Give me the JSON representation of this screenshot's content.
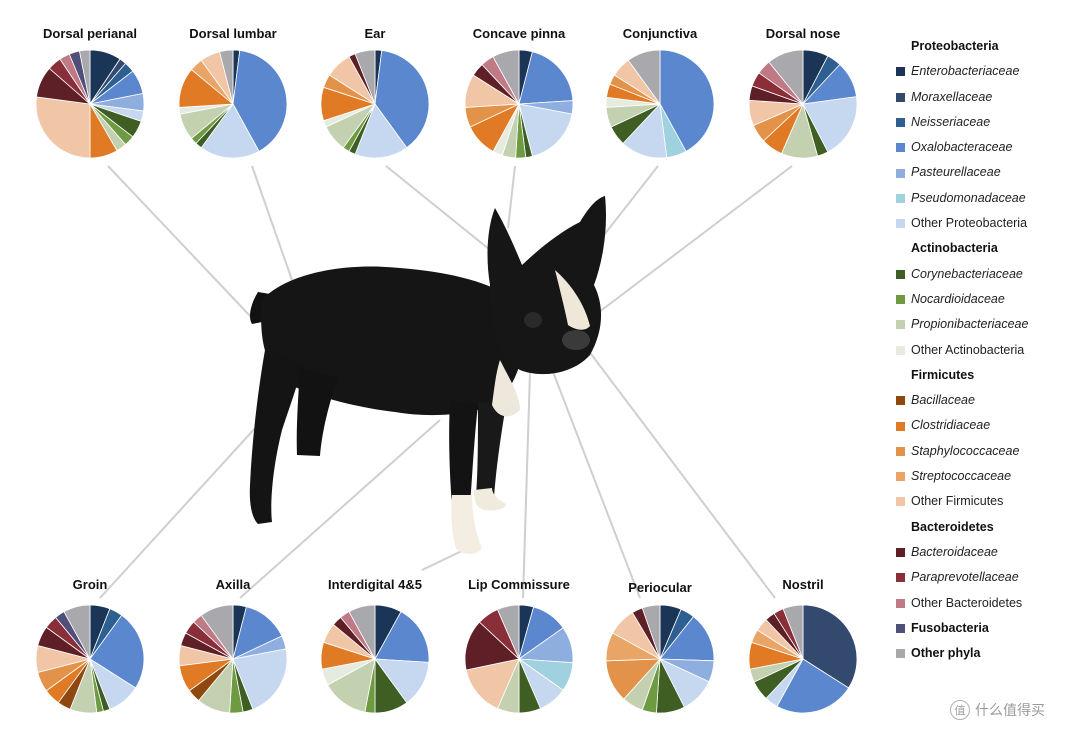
{
  "colors": {
    "Enterobacteriaceae": "#1b3557",
    "Moraxellaceae": "#34496e",
    "Neisseriaceae": "#2e5f91",
    "Oxalobacteraceae": "#5b87cf",
    "Pasteurellaceae": "#8faee0",
    "Pseudomonadaceae": "#9fd1de",
    "Other Proteobacteria": "#c6d8ef",
    "Corynebacteriaceae": "#3e5e24",
    "Nocardioidaceae": "#6e9a42",
    "Propionibacteriaceae": "#c4d1b1",
    "Other Actinobacteria": "#e6ebe0",
    "Bacillaceae": "#8f4810",
    "Clostridiaceae": "#e07a24",
    "Staphylococcaceae": "#e3924a",
    "Streptococcaceae": "#e8a565",
    "Other Firmicutes": "#f1c6a6",
    "Bacteroidaceae": "#5e1f26",
    "Paraprevotellaceae": "#8a2f3a",
    "Other Bacteroidetes": "#c07a85",
    "Fusobacteria": "#4f4f7a",
    "Other phyla": "#a9a9ad"
  },
  "legend": [
    {
      "group": "Proteobacteria",
      "items": [
        {
          "name": "Enterobacteriaceae",
          "italic": true
        },
        {
          "name": "Moraxellaceae",
          "italic": true
        },
        {
          "name": "Neisseriaceae",
          "italic": true
        },
        {
          "name": "Oxalobacteraceae",
          "italic": true
        },
        {
          "name": "Pasteurellaceae",
          "italic": true
        },
        {
          "name": "Pseudomonadaceae",
          "italic": true
        },
        {
          "name": "Other Proteobacteria",
          "italic": false
        }
      ]
    },
    {
      "group": "Actinobacteria",
      "items": [
        {
          "name": "Corynebacteriaceae",
          "italic": true
        },
        {
          "name": "Nocardioidaceae",
          "italic": true
        },
        {
          "name": "Propionibacteriaceae",
          "italic": true
        },
        {
          "name": "Other Actinobacteria",
          "italic": false
        }
      ]
    },
    {
      "group": "Firmicutes",
      "items": [
        {
          "name": "Bacillaceae",
          "italic": true
        },
        {
          "name": "Clostridiaceae",
          "italic": true
        },
        {
          "name": "Staphylococcaceae",
          "italic": true
        },
        {
          "name": "Streptococcaceae",
          "italic": true
        },
        {
          "name": "Other Firmicutes",
          "italic": false
        }
      ]
    },
    {
      "group": "Bacteroidetes",
      "items": [
        {
          "name": "Bacteroidaceae",
          "italic": true
        },
        {
          "name": "Paraprevotellaceae",
          "italic": true
        },
        {
          "name": "Other Bacteroidetes",
          "italic": false
        }
      ]
    },
    {
      "group": null,
      "items": [
        {
          "name": "Fusobacteria",
          "bold": true
        },
        {
          "name": "Other phyla",
          "bold": true
        }
      ]
    }
  ],
  "chart_data": [
    {
      "type": "pie",
      "title": "Dorsal perianal",
      "slices": [
        {
          "label": "Enterobacteriaceae",
          "value": 9
        },
        {
          "label": "Moraxellaceae",
          "value": 2
        },
        {
          "label": "Neisseriaceae",
          "value": 3
        },
        {
          "label": "Oxalobacteraceae",
          "value": 7
        },
        {
          "label": "Pasteurellaceae",
          "value": 5
        },
        {
          "label": "Other Proteobacteria",
          "value": 3
        },
        {
          "label": "Corynebacteriaceae",
          "value": 5
        },
        {
          "label": "Nocardioidaceae",
          "value": 3
        },
        {
          "label": "Propionibacteriaceae",
          "value": 3
        },
        {
          "label": "Clostridiaceae",
          "value": 8
        },
        {
          "label": "Other Firmicutes",
          "value": 26
        },
        {
          "label": "Bacteroidaceae",
          "value": 9
        },
        {
          "label": "Paraprevotellaceae",
          "value": 4
        },
        {
          "label": "Other Bacteroidetes",
          "value": 3
        },
        {
          "label": "Fusobacteria",
          "value": 3
        },
        {
          "label": "Other phyla",
          "value": 3
        }
      ]
    },
    {
      "type": "pie",
      "title": "Dorsal lumbar",
      "slices": [
        {
          "label": "Enterobacteriaceae",
          "value": 2
        },
        {
          "label": "Oxalobacteraceae",
          "value": 40
        },
        {
          "label": "Other Proteobacteria",
          "value": 18
        },
        {
          "label": "Corynebacteriaceae",
          "value": 2
        },
        {
          "label": "Nocardioidaceae",
          "value": 2
        },
        {
          "label": "Propionibacteriaceae",
          "value": 8
        },
        {
          "label": "Other Actinobacteria",
          "value": 2
        },
        {
          "label": "Clostridiaceae",
          "value": 12
        },
        {
          "label": "Streptococcaceae",
          "value": 4
        },
        {
          "label": "Other Firmicutes",
          "value": 6
        },
        {
          "label": "Other phyla",
          "value": 4
        }
      ]
    },
    {
      "type": "pie",
      "title": "Ear",
      "slices": [
        {
          "label": "Enterobacteriaceae",
          "value": 2
        },
        {
          "label": "Oxalobacteraceae",
          "value": 38
        },
        {
          "label": "Other Proteobacteria",
          "value": 16
        },
        {
          "label": "Corynebacteriaceae",
          "value": 2
        },
        {
          "label": "Nocardioidaceae",
          "value": 2
        },
        {
          "label": "Propionibacteriaceae",
          "value": 8
        },
        {
          "label": "Other Actinobacteria",
          "value": 2
        },
        {
          "label": "Clostridiaceae",
          "value": 10
        },
        {
          "label": "Staphylococcaceae",
          "value": 4
        },
        {
          "label": "Other Firmicutes",
          "value": 8
        },
        {
          "label": "Bacteroidaceae",
          "value": 2
        },
        {
          "label": "Other phyla",
          "value": 6
        }
      ]
    },
    {
      "type": "pie",
      "title": "Concave pinna",
      "slices": [
        {
          "label": "Enterobacteriaceae",
          "value": 4
        },
        {
          "label": "Oxalobacteraceae",
          "value": 20
        },
        {
          "label": "Pasteurellaceae",
          "value": 4
        },
        {
          "label": "Other Proteobacteria",
          "value": 18
        },
        {
          "label": "Corynebacteriaceae",
          "value": 2
        },
        {
          "label": "Nocardioidaceae",
          "value": 3
        },
        {
          "label": "Propionibacteriaceae",
          "value": 4
        },
        {
          "label": "Other Actinobacteria",
          "value": 3
        },
        {
          "label": "Clostridiaceae",
          "value": 10
        },
        {
          "label": "Staphylococcaceae",
          "value": 6
        },
        {
          "label": "Other Firmicutes",
          "value": 10
        },
        {
          "label": "Bacteroidaceae",
          "value": 4
        },
        {
          "label": "Other Bacteroidetes",
          "value": 4
        },
        {
          "label": "Other phyla",
          "value": 8
        }
      ]
    },
    {
      "type": "pie",
      "title": "Conjunctiva",
      "slices": [
        {
          "label": "Oxalobacteraceae",
          "value": 42
        },
        {
          "label": "Pseudomonadaceae",
          "value": 6
        },
        {
          "label": "Other Proteobacteria",
          "value": 14
        },
        {
          "label": "Corynebacteriaceae",
          "value": 6
        },
        {
          "label": "Propionibacteriaceae",
          "value": 6
        },
        {
          "label": "Other Actinobacteria",
          "value": 3
        },
        {
          "label": "Clostridiaceae",
          "value": 4
        },
        {
          "label": "Staphylococcaceae",
          "value": 3
        },
        {
          "label": "Other Firmicutes",
          "value": 6
        },
        {
          "label": "Other phyla",
          "value": 10
        }
      ]
    },
    {
      "type": "pie",
      "title": "Dorsal nose",
      "slices": [
        {
          "label": "Enterobacteriaceae",
          "value": 7
        },
        {
          "label": "Neisseriaceae",
          "value": 4
        },
        {
          "label": "Oxalobacteraceae",
          "value": 10
        },
        {
          "label": "Other Proteobacteria",
          "value": 18
        },
        {
          "label": "Corynebacteriaceae",
          "value": 3
        },
        {
          "label": "Propionibacteriaceae",
          "value": 10
        },
        {
          "label": "Clostridiaceae",
          "value": 6
        },
        {
          "label": "Staphylococcaceae",
          "value": 5
        },
        {
          "label": "Other Firmicutes",
          "value": 7
        },
        {
          "label": "Bacteroidaceae",
          "value": 4
        },
        {
          "label": "Paraprevotellaceae",
          "value": 4
        },
        {
          "label": "Other Bacteroidetes",
          "value": 4
        },
        {
          "label": "Other phyla",
          "value": 10
        }
      ]
    },
    {
      "type": "pie",
      "title": "Groin",
      "slices": [
        {
          "label": "Enterobacteriaceae",
          "value": 6
        },
        {
          "label": "Neisseriaceae",
          "value": 4
        },
        {
          "label": "Oxalobacteraceae",
          "value": 24
        },
        {
          "label": "Other Proteobacteria",
          "value": 10
        },
        {
          "label": "Corynebacteriaceae",
          "value": 2
        },
        {
          "label": "Nocardioidaceae",
          "value": 2
        },
        {
          "label": "Propionibacteriaceae",
          "value": 8
        },
        {
          "label": "Bacillaceae",
          "value": 4
        },
        {
          "label": "Clostridiaceae",
          "value": 5
        },
        {
          "label": "Staphylococcaceae",
          "value": 6
        },
        {
          "label": "Other Firmicutes",
          "value": 8
        },
        {
          "label": "Bacteroidaceae",
          "value": 6
        },
        {
          "label": "Paraprevotellaceae",
          "value": 4
        },
        {
          "label": "Fusobacteria",
          "value": 3
        },
        {
          "label": "Other phyla",
          "value": 8
        }
      ]
    },
    {
      "type": "pie",
      "title": "Axilla",
      "slices": [
        {
          "label": "Enterobacteriaceae",
          "value": 4
        },
        {
          "label": "Oxalobacteraceae",
          "value": 14
        },
        {
          "label": "Pasteurellaceae",
          "value": 4
        },
        {
          "label": "Other Proteobacteria",
          "value": 22
        },
        {
          "label": "Corynebacteriaceae",
          "value": 3
        },
        {
          "label": "Nocardioidaceae",
          "value": 4
        },
        {
          "label": "Propionibacteriaceae",
          "value": 10
        },
        {
          "label": "Bacillaceae",
          "value": 4
        },
        {
          "label": "Clostridiaceae",
          "value": 8
        },
        {
          "label": "Other Firmicutes",
          "value": 6
        },
        {
          "label": "Bacteroidaceae",
          "value": 4
        },
        {
          "label": "Paraprevotellaceae",
          "value": 4
        },
        {
          "label": "Other Bacteroidetes",
          "value": 3
        },
        {
          "label": "Other phyla",
          "value": 10
        }
      ]
    },
    {
      "type": "pie",
      "title": "Interdigital 4&5",
      "slices": [
        {
          "label": "Enterobacteriaceae",
          "value": 8
        },
        {
          "label": "Oxalobacteraceae",
          "value": 18
        },
        {
          "label": "Other Proteobacteria",
          "value": 14
        },
        {
          "label": "Corynebacteriaceae",
          "value": 10
        },
        {
          "label": "Nocardioidaceae",
          "value": 3
        },
        {
          "label": "Propionibacteriaceae",
          "value": 14
        },
        {
          "label": "Other Actinobacteria",
          "value": 5
        },
        {
          "label": "Clostridiaceae",
          "value": 8
        },
        {
          "label": "Other Firmicutes",
          "value": 6
        },
        {
          "label": "Bacteroidaceae",
          "value": 3
        },
        {
          "label": "Other Bacteroidetes",
          "value": 3
        },
        {
          "label": "Other phyla",
          "value": 8
        }
      ]
    },
    {
      "type": "pie",
      "title": "Lip Commissure",
      "slices": [
        {
          "label": "Enterobacteriaceae",
          "value": 4
        },
        {
          "label": "Oxalobacteraceae",
          "value": 10
        },
        {
          "label": "Pasteurellaceae",
          "value": 10
        },
        {
          "label": "Pseudomonadaceae",
          "value": 8
        },
        {
          "label": "Other Proteobacteria",
          "value": 8
        },
        {
          "label": "Corynebacteriaceae",
          "value": 6
        },
        {
          "label": "Propionibacteriaceae",
          "value": 6
        },
        {
          "label": "Other Firmicutes",
          "value": 14
        },
        {
          "label": "Bacteroidaceae",
          "value": 14
        },
        {
          "label": "Paraprevotellaceae",
          "value": 6
        },
        {
          "label": "Other phyla",
          "value": 6
        }
      ]
    },
    {
      "type": "pie",
      "title": "Periocular",
      "slices": [
        {
          "label": "Enterobacteriaceae",
          "value": 6
        },
        {
          "label": "Neisseriaceae",
          "value": 4
        },
        {
          "label": "Oxalobacteraceae",
          "value": 14
        },
        {
          "label": "Pasteurellaceae",
          "value": 6
        },
        {
          "label": "Other Proteobacteria",
          "value": 10
        },
        {
          "label": "Corynebacteriaceae",
          "value": 8
        },
        {
          "label": "Nocardioidaceae",
          "value": 4
        },
        {
          "label": "Propionibacteriaceae",
          "value": 6
        },
        {
          "label": "Staphylococcaceae",
          "value": 12
        },
        {
          "label": "Streptococcaceae",
          "value": 8
        },
        {
          "label": "Other Firmicutes",
          "value": 8
        },
        {
          "label": "Bacteroidaceae",
          "value": 3
        },
        {
          "label": "Other phyla",
          "value": 5
        }
      ]
    },
    {
      "type": "pie",
      "title": "Nostril",
      "slices": [
        {
          "label": "Moraxellaceae",
          "value": 34
        },
        {
          "label": "Oxalobacteraceae",
          "value": 24
        },
        {
          "label": "Other Proteobacteria",
          "value": 4
        },
        {
          "label": "Corynebacteriaceae",
          "value": 6
        },
        {
          "label": "Propionibacteriaceae",
          "value": 4
        },
        {
          "label": "Clostridiaceae",
          "value": 8
        },
        {
          "label": "Streptococcaceae",
          "value": 4
        },
        {
          "label": "Other Firmicutes",
          "value": 4
        },
        {
          "label": "Bacteroidaceae",
          "value": 3
        },
        {
          "label": "Paraprevotellaceae",
          "value": 3
        },
        {
          "label": "Other phyla",
          "value": 6
        }
      ]
    }
  ],
  "watermark": {
    "text": "什么值得买",
    "icon": "zhi-logo-icon",
    "icon_glyph": "值"
  }
}
